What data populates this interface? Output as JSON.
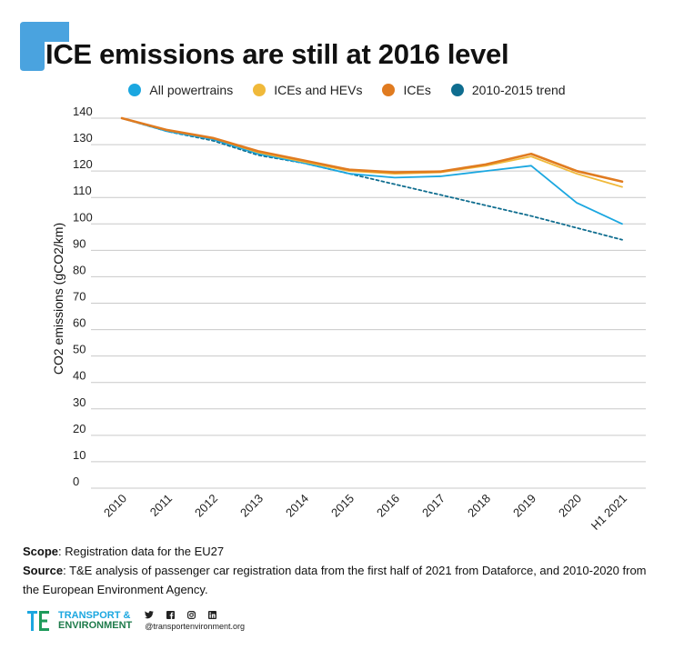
{
  "header": {
    "title": "ICE emissions are still at 2016 level",
    "accent_color": "#4aa3df"
  },
  "chart_data": {
    "type": "line",
    "title": "ICE emissions are still at 2016 level",
    "xlabel": "",
    "ylabel": "CO2 emissions (gCO2/km)",
    "categories": [
      "2010",
      "2011",
      "2012",
      "2013",
      "2014",
      "2015",
      "2016",
      "2017",
      "2018",
      "2019",
      "2020",
      "H1 2021"
    ],
    "ylim": [
      0,
      140
    ],
    "yticks": [
      0,
      10,
      20,
      30,
      40,
      50,
      60,
      70,
      80,
      90,
      100,
      110,
      120,
      130,
      140
    ],
    "grid": true,
    "legend_position": "top",
    "series": [
      {
        "name": "All powertrains",
        "color": "#1ba7e0",
        "style": "solid",
        "values": [
          140,
          135,
          132,
          126.5,
          123,
          119,
          117.5,
          118,
          120,
          122,
          108,
          100
        ]
      },
      {
        "name": "ICEs and HEVs",
        "color": "#f0b93a",
        "style": "solid",
        "values": [
          140,
          135.5,
          132.5,
          127,
          123.5,
          120,
          119,
          119.5,
          122,
          125.5,
          119,
          114
        ]
      },
      {
        "name": "ICEs",
        "color": "#e07b20",
        "style": "solid",
        "values": [
          140,
          135.5,
          132.5,
          127.5,
          124,
          120.5,
          119.5,
          119.8,
          122.5,
          126.5,
          120,
          116
        ]
      },
      {
        "name": "2010-2015 trend",
        "color": "#0f6d8f",
        "style": "dashed",
        "values": [
          140,
          135,
          131.5,
          126,
          123,
          119,
          115,
          111,
          107,
          103,
          98.5,
          94
        ]
      }
    ]
  },
  "notes": {
    "scope_label": "Scope",
    "scope_text": ": Registration data for the EU27",
    "source_label": "Source",
    "source_text_1": ": T&E analysis of passenger car registration data from the first half of 2021 from Dataforce, and 2010-2020 from",
    "source_text_2": "the European Environment Agency."
  },
  "footer": {
    "logo_line1": "TRANSPORT &",
    "logo_line2": "ENVIRONMENT",
    "handle": "@transportenvironment.org",
    "social_icons": [
      "twitter-icon",
      "facebook-icon",
      "instagram-icon",
      "linkedin-icon"
    ]
  }
}
